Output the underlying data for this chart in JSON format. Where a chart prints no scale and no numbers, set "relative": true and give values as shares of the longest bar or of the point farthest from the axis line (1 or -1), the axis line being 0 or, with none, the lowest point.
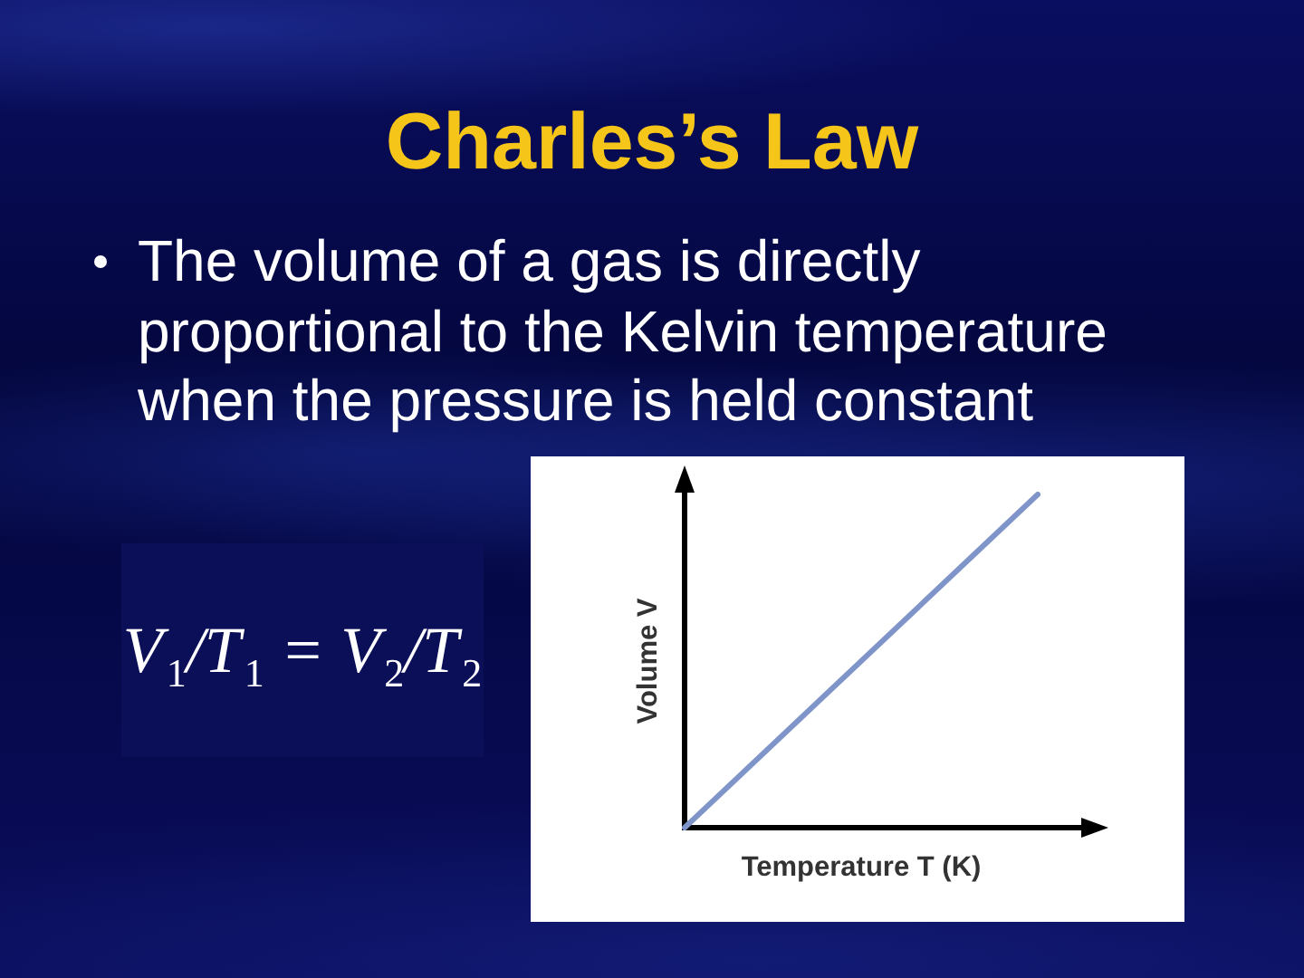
{
  "chart_data": {
    "type": "line",
    "title": "Charles’s Law",
    "subtitle": "The volume of a gas is directly proportional to the Kelvin temperature when the pressure is held constant",
    "xlabel": "Temperature T (K)",
    "ylabel": "Volume V",
    "categories": [
      null,
      null
    ],
    "relative": true,
    "series": [
      {
        "color": "#7f94c9",
        "values": [
          0,
          1
        ]
      }
    ],
    "annotations": [
      "V$_{1}$/T$_{1}$ = V$_{2}$/T$_{2}$"
    ],
    "marker": "none",
    "line_style": "solid"
  }
}
